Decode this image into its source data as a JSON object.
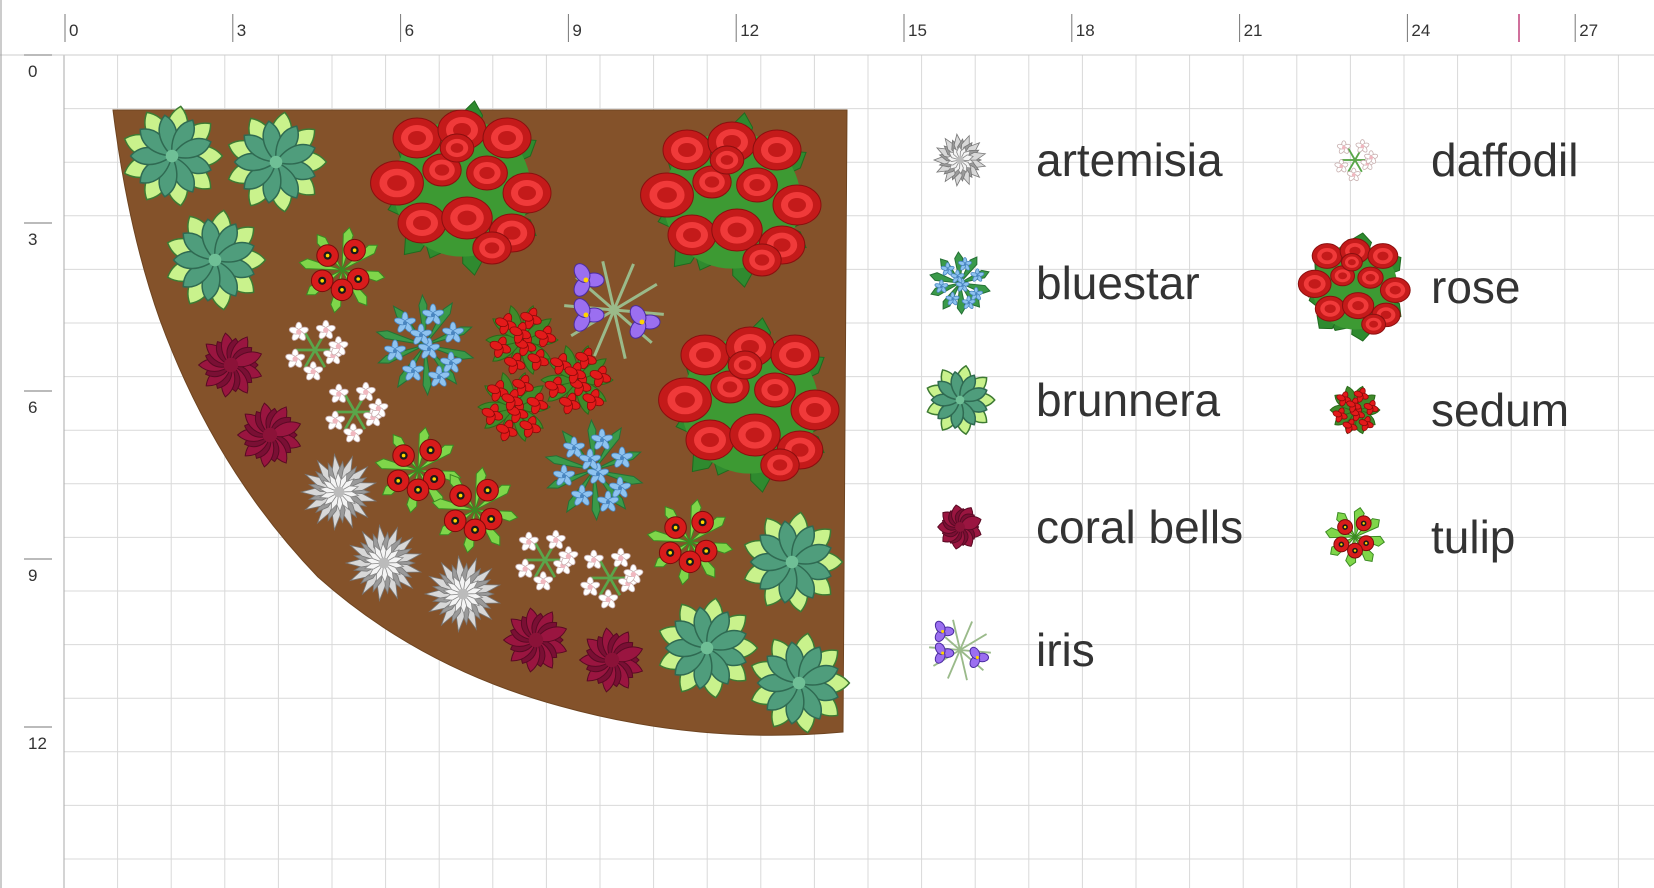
{
  "rulers": {
    "x_labels": [
      "0",
      "3",
      "6",
      "9",
      "12",
      "15",
      "18",
      "21",
      "24",
      "27"
    ],
    "y_labels": [
      "0",
      "3",
      "6",
      "9",
      "12"
    ],
    "cursor_marker_color": "#c0407a"
  },
  "colors": {
    "soil": "#84522a",
    "grid": "#d9d9d9",
    "ruler_line": "#777777"
  },
  "legend": {
    "items": [
      {
        "key": "artemisia",
        "label": "artemisia",
        "icon": "artemisia-icon"
      },
      {
        "key": "bluestar",
        "label": "bluestar",
        "icon": "bluestar-icon"
      },
      {
        "key": "brunnera",
        "label": "brunnera",
        "icon": "brunnera-icon"
      },
      {
        "key": "coral_bells",
        "label": "coral bells",
        "icon": "coral-bells-icon"
      },
      {
        "key": "iris",
        "label": "iris",
        "icon": "iris-icon"
      },
      {
        "key": "daffodil",
        "label": "daffodil",
        "icon": "daffodil-icon"
      },
      {
        "key": "rose",
        "label": "rose",
        "icon": "rose-icon"
      },
      {
        "key": "sedum",
        "label": "sedum",
        "icon": "sedum-icon"
      },
      {
        "key": "tulip",
        "label": "tulip",
        "icon": "tulip-icon"
      }
    ]
  },
  "plants": [
    {
      "type": "brunnera"
    },
    {
      "type": "brunnera"
    },
    {
      "type": "brunnera"
    },
    {
      "type": "rose"
    },
    {
      "type": "rose"
    },
    {
      "type": "rose"
    },
    {
      "type": "tulip"
    },
    {
      "type": "tulip"
    },
    {
      "type": "tulip"
    },
    {
      "type": "tulip"
    },
    {
      "type": "iris"
    },
    {
      "type": "coral_bells"
    },
    {
      "type": "coral_bells"
    },
    {
      "type": "coral_bells"
    },
    {
      "type": "coral_bells"
    },
    {
      "type": "daffodil"
    },
    {
      "type": "daffodil"
    },
    {
      "type": "daffodil"
    },
    {
      "type": "daffodil"
    },
    {
      "type": "bluestar"
    },
    {
      "type": "bluestar"
    },
    {
      "type": "sedum"
    },
    {
      "type": "sedum"
    },
    {
      "type": "sedum"
    },
    {
      "type": "artemisia"
    },
    {
      "type": "artemisia"
    },
    {
      "type": "artemisia"
    },
    {
      "type": "brunnera"
    },
    {
      "type": "brunnera"
    },
    {
      "type": "brunnera"
    }
  ]
}
